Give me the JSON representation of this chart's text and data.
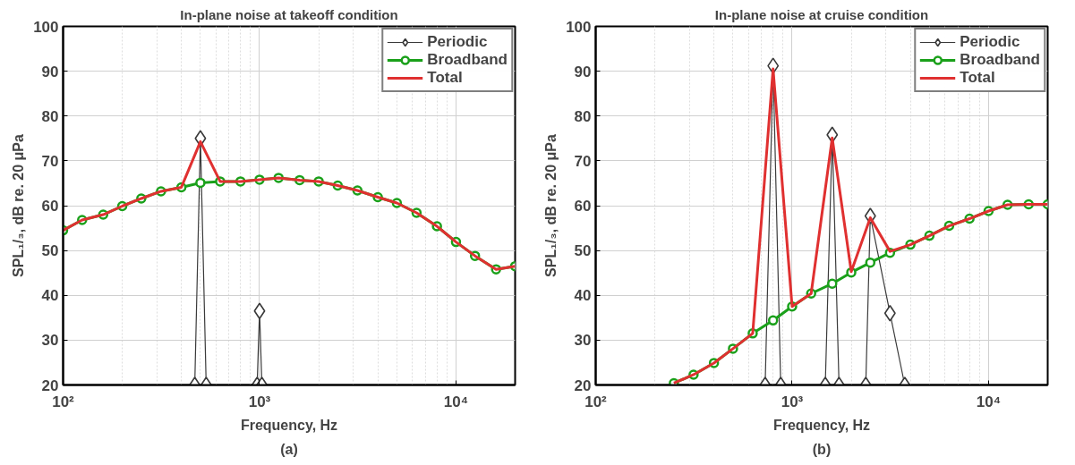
{
  "chart_data": [
    {
      "type": "line",
      "title": "In-plane noise at takeoff condition",
      "xlabel": "Frequency, Hz",
      "ylabel": "SPL₁/₃, dB re. 20 μPa",
      "annotations": [
        "(a)"
      ],
      "log": "x",
      "xlim": [
        100,
        20000
      ],
      "xticks": [
        {
          "value": 100,
          "label": "10²"
        },
        {
          "value": 1000,
          "label": "10³"
        },
        {
          "value": 10000,
          "label": "10⁴"
        }
      ],
      "ylim": [
        20,
        100
      ],
      "yticks": [
        20,
        30,
        40,
        50,
        60,
        70,
        80,
        90,
        100
      ],
      "grid": true,
      "legend": "top right",
      "series": [
        {
          "name": "Periodic",
          "color": "#3a3a3a",
          "marker": "diamond",
          "x": [
            468,
            500,
            535,
            750,
            972,
            1000,
            1028
          ],
          "values": [
            20,
            75,
            20,
            null,
            20,
            36.5,
            20
          ]
        },
        {
          "name": "Broadband",
          "color": "#1aa01a",
          "marker": "circle",
          "x": [
            100,
            125,
            160,
            200,
            250,
            315,
            400,
            500,
            630,
            800,
            1000,
            1250,
            1600,
            2000,
            2500,
            3150,
            4000,
            5000,
            6300,
            8000,
            10000,
            12500,
            16000,
            20000
          ],
          "values": [
            54.5,
            56.8,
            58.0,
            59.9,
            61.6,
            63.2,
            64.1,
            65.1,
            65.4,
            65.4,
            65.8,
            66.2,
            65.7,
            65.4,
            64.5,
            63.4,
            61.9,
            60.6,
            58.4,
            55.4,
            51.9,
            48.8,
            45.8,
            46.5
          ]
        },
        {
          "name": "Total",
          "color": "#e03030",
          "marker": "none",
          "x": [
            100,
            125,
            160,
            200,
            250,
            315,
            400,
            500,
            630,
            800,
            1000,
            1250,
            1600,
            2000,
            2500,
            3150,
            4000,
            5000,
            6300,
            8000,
            10000,
            12500,
            16000,
            20000
          ],
          "values": [
            54.5,
            56.8,
            58.0,
            59.9,
            61.6,
            63.2,
            64.1,
            74.3,
            65.4,
            65.4,
            65.8,
            66.2,
            65.7,
            65.4,
            64.5,
            63.4,
            61.9,
            60.6,
            58.4,
            55.4,
            51.9,
            48.8,
            45.8,
            46.5
          ]
        }
      ]
    },
    {
      "type": "line",
      "title": "In-plane noise at cruise condition",
      "xlabel": "Frequency, Hz",
      "ylabel": "SPL₁/₃, dB re. 20 μPa",
      "annotations": [
        "(b)"
      ],
      "log": "x",
      "xlim": [
        100,
        20000
      ],
      "xticks": [
        {
          "value": 100,
          "label": "10²"
        },
        {
          "value": 1000,
          "label": "10³"
        },
        {
          "value": 10000,
          "label": "10⁴"
        }
      ],
      "ylim": [
        20,
        100
      ],
      "yticks": [
        20,
        30,
        40,
        50,
        60,
        70,
        80,
        90,
        100
      ],
      "grid": true,
      "legend": "top right",
      "series": [
        {
          "name": "Periodic",
          "color": "#3a3a3a",
          "marker": "diamond",
          "x": [
            729,
            800,
            875,
            1200,
            1475,
            1600,
            1733,
            2100,
            2371,
            2500,
            3150,
            3744
          ],
          "values": [
            20,
            91.2,
            20,
            null,
            20,
            75.8,
            20,
            null,
            20,
            57.7,
            36.0,
            20
          ]
        },
        {
          "name": "Broadband",
          "color": "#1aa01a",
          "marker": "circle",
          "x": [
            250,
            315,
            400,
            500,
            630,
            800,
            1000,
            1250,
            1600,
            2000,
            2500,
            3150,
            4000,
            5000,
            6300,
            8000,
            10000,
            12500,
            16000,
            20000
          ],
          "values": [
            20.4,
            22.3,
            24.9,
            28.1,
            31.5,
            34.4,
            37.5,
            40.4,
            42.6,
            45.1,
            47.3,
            49.5,
            51.3,
            53.3,
            55.5,
            57.1,
            58.8,
            60.2,
            60.3,
            60.3
          ]
        },
        {
          "name": "Total",
          "color": "#e03030",
          "marker": "none",
          "x": [
            250,
            315,
            400,
            500,
            630,
            800,
            1000,
            1250,
            1600,
            2000,
            2500,
            3150,
            4000,
            5000,
            6300,
            8000,
            10000,
            12500,
            16000,
            20000
          ],
          "values": [
            20.4,
            22.3,
            24.9,
            28.1,
            31.5,
            90.5,
            37.5,
            40.4,
            75.1,
            45.3,
            57.3,
            49.8,
            51.3,
            53.3,
            55.5,
            57.1,
            58.8,
            60.2,
            60.3,
            60.3
          ]
        }
      ]
    }
  ]
}
